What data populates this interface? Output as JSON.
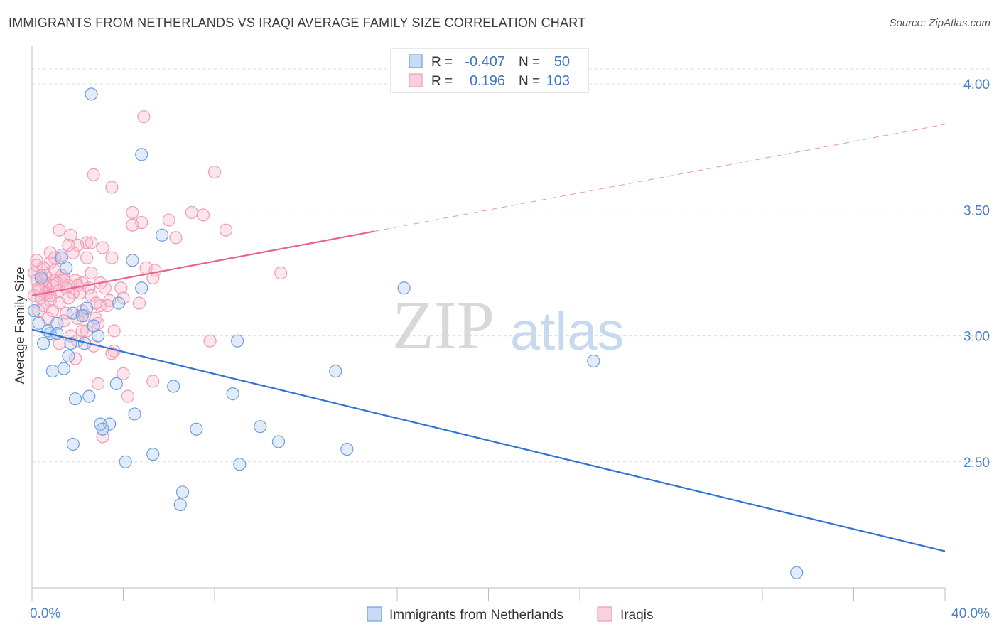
{
  "title": "IMMIGRANTS FROM NETHERLANDS VS IRAQI AVERAGE FAMILY SIZE CORRELATION CHART",
  "source": "Source: ZipAtlas.com",
  "watermark": {
    "zip": "ZIP",
    "atlas": "atlas"
  },
  "colors": {
    "blue": "#6a9fe0",
    "blue_line": "#2f74d0",
    "pink": "#f29ab5",
    "pink_line": "#e8638e",
    "tick": "#4a7fc8"
  },
  "legend_box": {
    "rows": [
      {
        "r_label": "R =",
        "r_value": "-0.407",
        "n_label": "N =",
        "n_value": "50"
      },
      {
        "r_label": "R =",
        "r_value": "0.196",
        "n_label": "N =",
        "n_value": "103"
      }
    ]
  },
  "chart_data": {
    "type": "scatter",
    "title": "IMMIGRANTS FROM NETHERLANDS VS IRAQI AVERAGE FAMILY SIZE CORRELATION CHART",
    "xlabel": "",
    "ylabel": "Average Family Size",
    "xlim": [
      0,
      40
    ],
    "ylim": [
      2.0,
      4.15
    ],
    "x_tick_labels": [
      "0.0%",
      "40.0%"
    ],
    "y_ticks": [
      2.5,
      3.0,
      3.5,
      4.0
    ],
    "y_tick_labels": [
      "2.50",
      "3.00",
      "3.50",
      "4.00"
    ],
    "grid": true,
    "legend_position": "bottom-center",
    "series": [
      {
        "name": "Immigrants from Netherlands",
        "color": "#6a9fe0",
        "points": [
          [
            2.6,
            3.96
          ],
          [
            4.8,
            3.72
          ],
          [
            1.3,
            3.31
          ],
          [
            1.5,
            3.27
          ],
          [
            4.4,
            3.3
          ],
          [
            5.7,
            3.4
          ],
          [
            0.4,
            3.23
          ],
          [
            0.1,
            3.1
          ],
          [
            0.3,
            3.05
          ],
          [
            0.8,
            3.01
          ],
          [
            1.1,
            3.05
          ],
          [
            0.5,
            2.97
          ],
          [
            0.7,
            3.02
          ],
          [
            1.8,
            3.09
          ],
          [
            2.4,
            3.11
          ],
          [
            3.8,
            3.13
          ],
          [
            4.8,
            3.19
          ],
          [
            1.7,
            2.97
          ],
          [
            2.3,
            2.97
          ],
          [
            2.9,
            3.0
          ],
          [
            1.6,
            2.92
          ],
          [
            0.9,
            2.86
          ],
          [
            1.4,
            2.87
          ],
          [
            3.7,
            2.81
          ],
          [
            6.2,
            2.8
          ],
          [
            8.8,
            2.77
          ],
          [
            2.5,
            2.76
          ],
          [
            1.9,
            2.75
          ],
          [
            3.0,
            2.65
          ],
          [
            3.4,
            2.65
          ],
          [
            3.1,
            2.63
          ],
          [
            4.5,
            2.69
          ],
          [
            7.2,
            2.63
          ],
          [
            10.0,
            2.64
          ],
          [
            1.8,
            2.57
          ],
          [
            10.8,
            2.58
          ],
          [
            4.1,
            2.5
          ],
          [
            5.3,
            2.53
          ],
          [
            9.1,
            2.49
          ],
          [
            13.8,
            2.55
          ],
          [
            6.6,
            2.38
          ],
          [
            6.5,
            2.33
          ],
          [
            9.0,
            2.98
          ],
          [
            13.3,
            2.86
          ],
          [
            16.3,
            3.19
          ],
          [
            24.6,
            2.9
          ],
          [
            33.5,
            2.06
          ],
          [
            2.7,
            3.04
          ],
          [
            2.2,
            3.08
          ],
          [
            1.1,
            3.01
          ]
        ]
      },
      {
        "name": "Iraqis",
        "color": "#f29ab5",
        "points": [
          [
            4.9,
            3.87
          ],
          [
            2.7,
            3.64
          ],
          [
            3.5,
            3.59
          ],
          [
            8.0,
            3.65
          ],
          [
            4.4,
            3.49
          ],
          [
            7.0,
            3.49
          ],
          [
            7.5,
            3.48
          ],
          [
            6.0,
            3.46
          ],
          [
            4.8,
            3.45
          ],
          [
            4.4,
            3.44
          ],
          [
            8.5,
            3.42
          ],
          [
            1.2,
            3.42
          ],
          [
            1.7,
            3.4
          ],
          [
            6.3,
            3.39
          ],
          [
            2.4,
            3.37
          ],
          [
            2.6,
            3.37
          ],
          [
            1.6,
            3.36
          ],
          [
            3.1,
            3.35
          ],
          [
            2.0,
            3.36
          ],
          [
            1.8,
            3.33
          ],
          [
            0.8,
            3.33
          ],
          [
            1.0,
            3.31
          ],
          [
            1.3,
            3.32
          ],
          [
            3.5,
            3.31
          ],
          [
            0.8,
            3.29
          ],
          [
            0.2,
            3.28
          ],
          [
            0.5,
            3.27
          ],
          [
            0.1,
            3.25
          ],
          [
            0.4,
            3.24
          ],
          [
            5.0,
            3.27
          ],
          [
            5.4,
            3.26
          ],
          [
            10.9,
            3.25
          ],
          [
            0.2,
            3.22
          ],
          [
            0.6,
            3.2
          ],
          [
            1.0,
            3.22
          ],
          [
            1.4,
            3.23
          ],
          [
            1.9,
            3.22
          ],
          [
            2.2,
            3.21
          ],
          [
            2.6,
            3.25
          ],
          [
            3.0,
            3.21
          ],
          [
            5.3,
            3.23
          ],
          [
            0.3,
            3.18
          ],
          [
            0.7,
            3.17
          ],
          [
            1.2,
            3.18
          ],
          [
            1.6,
            3.2
          ],
          [
            2.0,
            3.2
          ],
          [
            2.5,
            3.19
          ],
          [
            3.9,
            3.19
          ],
          [
            4.0,
            3.15
          ],
          [
            0.1,
            3.16
          ],
          [
            0.4,
            3.15
          ],
          [
            0.8,
            3.14
          ],
          [
            1.2,
            3.13
          ],
          [
            1.8,
            3.17
          ],
          [
            2.1,
            3.17
          ],
          [
            2.6,
            3.16
          ],
          [
            3.0,
            3.12
          ],
          [
            3.4,
            3.14
          ],
          [
            4.7,
            3.13
          ],
          [
            0.5,
            3.12
          ],
          [
            0.9,
            3.1
          ],
          [
            1.5,
            3.09
          ],
          [
            2.2,
            3.1
          ],
          [
            2.8,
            3.13
          ],
          [
            3.3,
            3.12
          ],
          [
            0.3,
            3.1
          ],
          [
            0.7,
            3.07
          ],
          [
            2.0,
            3.07
          ],
          [
            2.3,
            3.08
          ],
          [
            1.4,
            3.06
          ],
          [
            2.9,
            3.05
          ],
          [
            3.6,
            3.02
          ],
          [
            1.7,
            3.0
          ],
          [
            2.4,
            3.02
          ],
          [
            2.0,
            2.98
          ],
          [
            1.2,
            2.97
          ],
          [
            2.7,
            2.96
          ],
          [
            7.8,
            2.98
          ],
          [
            3.6,
            2.94
          ],
          [
            3.5,
            2.93
          ],
          [
            1.9,
            2.91
          ],
          [
            4.0,
            2.85
          ],
          [
            5.3,
            2.82
          ],
          [
            2.9,
            2.81
          ],
          [
            4.2,
            2.76
          ],
          [
            3.1,
            2.6
          ],
          [
            0.2,
            3.3
          ],
          [
            0.6,
            3.17
          ],
          [
            1.0,
            3.26
          ],
          [
            1.5,
            3.19
          ],
          [
            2.4,
            3.31
          ],
          [
            0.9,
            3.2
          ],
          [
            1.3,
            3.24
          ],
          [
            2.8,
            3.07
          ],
          [
            0.5,
            3.22
          ],
          [
            1.1,
            3.21
          ],
          [
            1.6,
            3.15
          ],
          [
            2.2,
            3.02
          ],
          [
            0.3,
            3.19
          ],
          [
            0.8,
            3.16
          ],
          [
            1.4,
            3.22
          ],
          [
            3.2,
            3.19
          ],
          [
            0.6,
            3.24
          ]
        ]
      }
    ],
    "trend_lines": [
      {
        "series": "Immigrants from Netherlands",
        "x": [
          0,
          40
        ],
        "y": [
          3.025,
          2.145
        ],
        "color": "#2f74d0",
        "style": "solid"
      },
      {
        "series": "Iraqis",
        "x": [
          0,
          15
        ],
        "y": [
          3.16,
          3.415
        ],
        "color": "#e8638e",
        "style": "solid"
      },
      {
        "series": "Iraqis",
        "x": [
          15,
          40
        ],
        "y": [
          3.415,
          3.84
        ],
        "color": "#e8638e",
        "style": "dashed"
      }
    ]
  }
}
